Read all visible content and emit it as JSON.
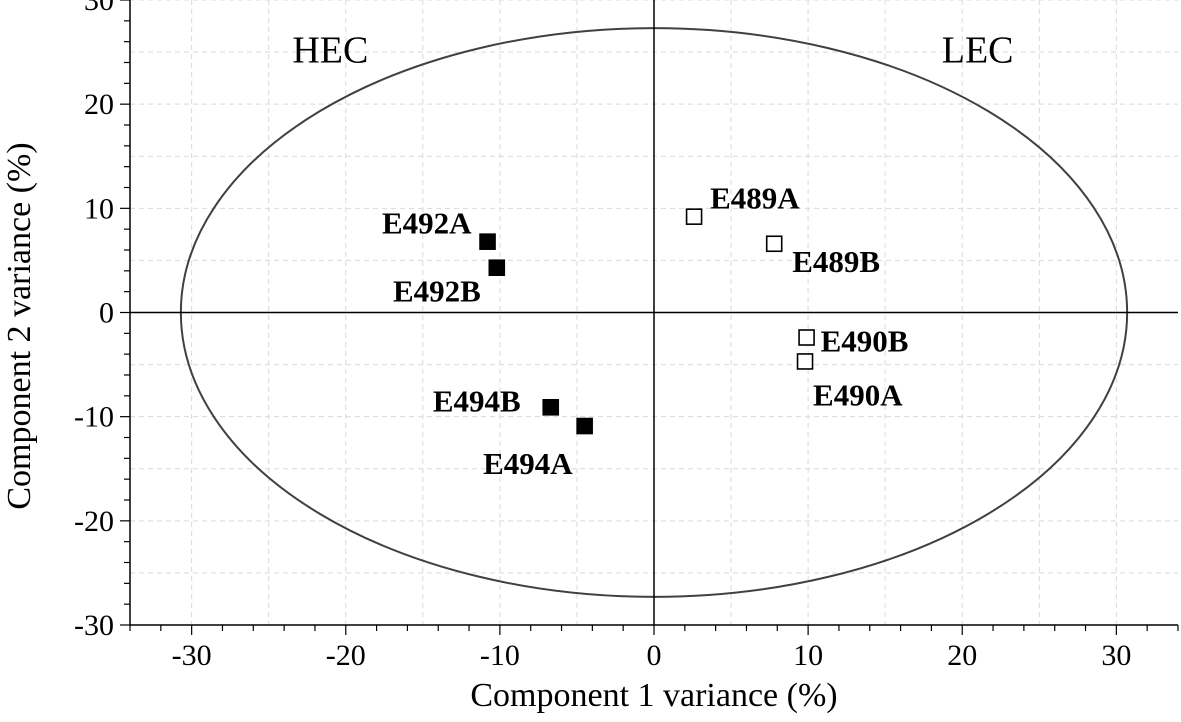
{
  "chart_data": {
    "type": "scatter",
    "title": "",
    "xlabel": "Component 1 variance (%)",
    "ylabel": "Component 2 variance (%)",
    "xlim": [
      -34,
      34
    ],
    "ylim": [
      -30,
      30
    ],
    "x_ticks": [
      -30,
      -20,
      -10,
      0,
      10,
      20,
      30
    ],
    "y_ticks": [
      -30,
      -20,
      -10,
      0,
      10,
      20,
      30
    ],
    "grid": true,
    "ellipse": {
      "rx": 30.7,
      "ry": 27.3,
      "color": "#404040"
    },
    "region_labels": [
      {
        "text": "HEC",
        "x": -21,
        "y": 24
      },
      {
        "text": "LEC",
        "x": 21,
        "y": 24
      }
    ],
    "series": [
      {
        "fill": "#000000",
        "points": [
          {
            "label": "E492A",
            "x": -10.8,
            "y": 6.8
          },
          {
            "label": "E492B",
            "x": -10.2,
            "y": 4.3
          },
          {
            "label": "E494B",
            "x": -6.7,
            "y": -9.1
          },
          {
            "label": "E494A",
            "x": -4.5,
            "y": -10.9
          }
        ]
      },
      {
        "fill": "#ffffff",
        "points": [
          {
            "label": "E489A",
            "x": 2.6,
            "y": 9.2
          },
          {
            "label": "E489B",
            "x": 7.8,
            "y": 6.6
          },
          {
            "label": "E490B",
            "x": 9.9,
            "y": -2.4
          },
          {
            "label": "E490A",
            "x": 9.8,
            "y": -4.7
          }
        ]
      }
    ]
  }
}
